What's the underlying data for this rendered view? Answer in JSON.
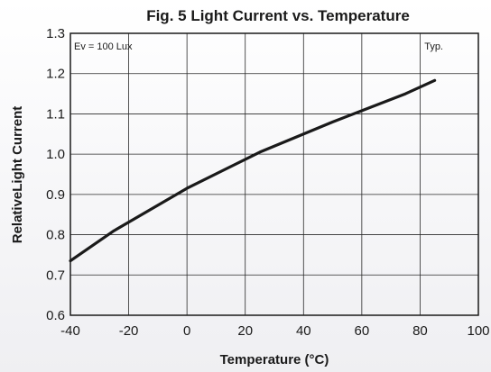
{
  "chart_data": {
    "type": "line",
    "title": "Fig. 5 Light Current vs. Temperature",
    "xlabel": "Temperature (°C)",
    "ylabel": "RelativeLight Current",
    "xlim": [
      -40,
      100
    ],
    "ylim": [
      0.6,
      1.3
    ],
    "xticks": [
      -40,
      -20,
      0,
      20,
      40,
      60,
      80,
      100
    ],
    "yticks": [
      0.6,
      0.7,
      0.8,
      0.9,
      1.0,
      1.1,
      1.2,
      1.3
    ],
    "ytick_labels": [
      "0.6",
      "0.7",
      "0.8",
      "0.9",
      "1.0",
      "1.1",
      "1.2",
      "1.3"
    ],
    "grid": true,
    "annotations": {
      "left": "Ev = 100 Lux",
      "right": "Typ."
    },
    "series": [
      {
        "color": "#1a1a1a",
        "x": [
          -40,
          -25,
          0,
          25,
          50,
          75,
          85
        ],
        "y": [
          0.735,
          0.81,
          0.915,
          1.005,
          1.08,
          1.15,
          1.183
        ]
      }
    ]
  }
}
